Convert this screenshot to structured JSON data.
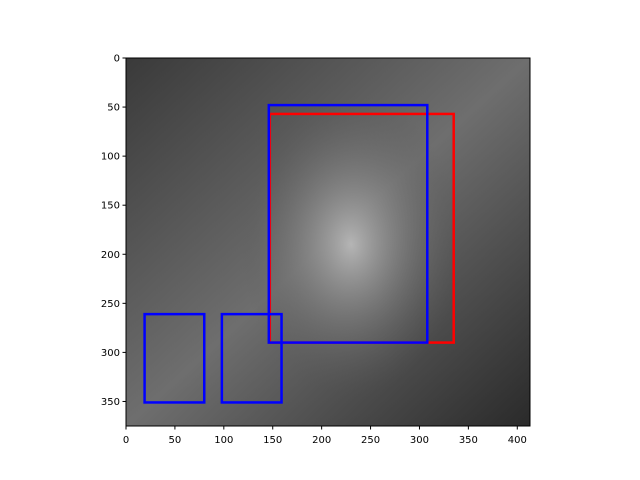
{
  "chart_data": {
    "type": "image",
    "xlim": [
      0,
      413
    ],
    "ylim": [
      375,
      0
    ],
    "xticks": [
      0,
      50,
      100,
      150,
      200,
      250,
      300,
      350,
      400
    ],
    "yticks": [
      0,
      50,
      100,
      150,
      200,
      250,
      300,
      350
    ],
    "boxes": [
      {
        "color": "#ff0000",
        "x0": 147,
        "y0": 57,
        "x1": 335,
        "y1": 290
      },
      {
        "color": "#0000ff",
        "x0": 146,
        "y0": 48,
        "x1": 308,
        "y1": 290
      },
      {
        "color": "#0000ff",
        "x0": 19,
        "y0": 261,
        "x1": 80,
        "y1": 351
      },
      {
        "color": "#0000ff",
        "x0": 98,
        "y0": 261,
        "x1": 159,
        "y1": 351
      }
    ]
  }
}
